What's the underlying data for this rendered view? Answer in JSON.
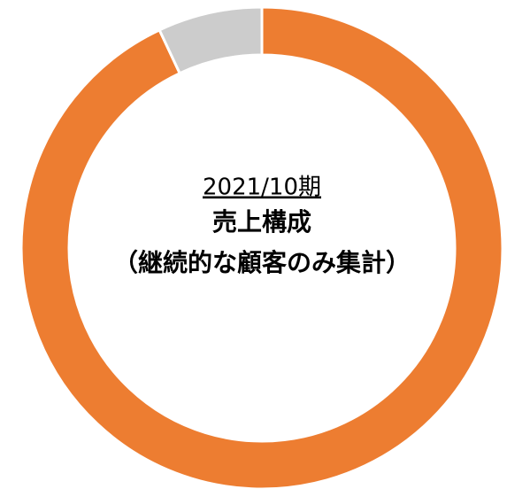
{
  "chart_data": {
    "type": "donut",
    "categories": [
      null,
      null
    ],
    "values": [
      93,
      7
    ],
    "colors": [
      "#ed7d31",
      "#cccccc"
    ],
    "annotations": [
      "2021/10期",
      "売上構成",
      "（継続的な顧客のみ集計）"
    ]
  }
}
